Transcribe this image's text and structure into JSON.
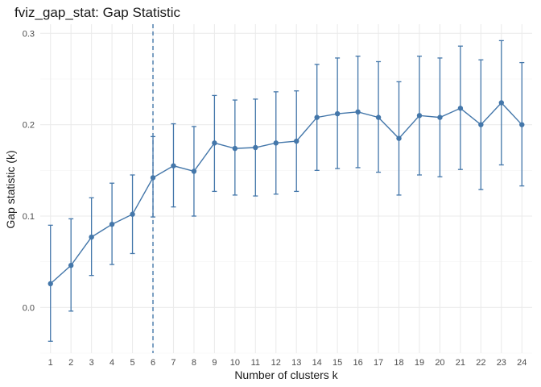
{
  "chart_data": {
    "type": "line",
    "title": "fviz_gap_stat: Gap Statistic",
    "xlabel": "Number of clusters k",
    "ylabel": "Gap statistic (k)",
    "x": [
      1,
      2,
      3,
      4,
      5,
      6,
      7,
      8,
      9,
      10,
      11,
      12,
      13,
      14,
      15,
      16,
      17,
      18,
      19,
      20,
      21,
      22,
      23,
      24
    ],
    "x_ticks": [
      "1",
      "2",
      "3",
      "4",
      "5",
      "6",
      "7",
      "8",
      "9",
      "10",
      "11",
      "12",
      "13",
      "14",
      "15",
      "16",
      "17",
      "18",
      "19",
      "20",
      "21",
      "22",
      "23",
      "24"
    ],
    "y_ticks": [
      "0.0",
      "0.1",
      "0.2",
      "0.3"
    ],
    "y_tick_values": [
      0.0,
      0.1,
      0.2,
      0.3
    ],
    "ylim": [
      -0.05,
      0.31
    ],
    "xlim": [
      0.5,
      24.5
    ],
    "series": [
      {
        "values": [
          0.026,
          0.046,
          0.077,
          0.091,
          0.102,
          0.142,
          0.155,
          0.149,
          0.18,
          0.174,
          0.175,
          0.18,
          0.182,
          0.208,
          0.212,
          0.214,
          0.208,
          0.185,
          0.21,
          0.208,
          0.218,
          0.2,
          0.224,
          0.2
        ],
        "error_low": [
          -0.037,
          -0.004,
          0.035,
          0.047,
          0.059,
          0.099,
          0.11,
          0.1,
          0.127,
          0.123,
          0.122,
          0.124,
          0.127,
          0.15,
          0.152,
          0.153,
          0.148,
          0.123,
          0.145,
          0.143,
          0.151,
          0.129,
          0.156,
          0.133
        ],
        "error_high": [
          0.09,
          0.097,
          0.12,
          0.136,
          0.145,
          0.187,
          0.201,
          0.198,
          0.232,
          0.227,
          0.228,
          0.236,
          0.237,
          0.266,
          0.273,
          0.275,
          0.269,
          0.247,
          0.275,
          0.273,
          0.286,
          0.271,
          0.292,
          0.268
        ],
        "color": "#4477AA"
      }
    ],
    "vline": {
      "x": 6,
      "style": "dashed",
      "color": "#4477AA"
    },
    "grid": true,
    "legend": "none",
    "background": "#ffffff"
  }
}
